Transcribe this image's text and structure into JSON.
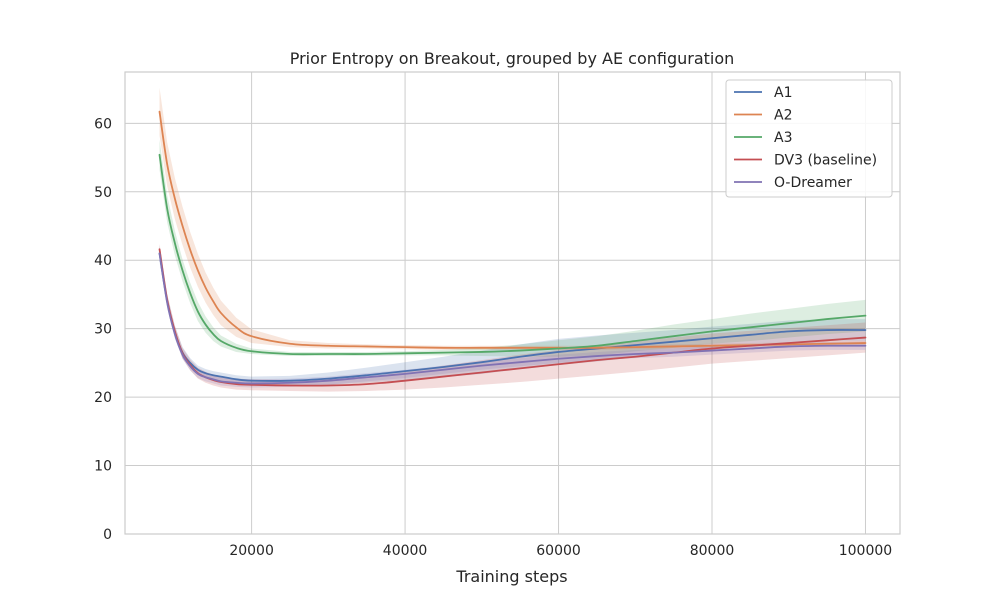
{
  "chart_data": {
    "type": "line",
    "title": "Prior Entropy on Breakout, grouped by AE configuration",
    "xlabel": "Training steps",
    "ylabel": "",
    "xlim": [
      3500,
      104500
    ],
    "ylim": [
      0,
      67.5
    ],
    "xticks": [
      20000,
      40000,
      60000,
      80000,
      100000
    ],
    "yticks": [
      0,
      10,
      20,
      30,
      40,
      50,
      60
    ],
    "grid": true,
    "legend_position": "top-right",
    "x": [
      8000,
      9000,
      10000,
      11000,
      12000,
      13000,
      14000,
      15000,
      16000,
      18000,
      20000,
      25000,
      30000,
      35000,
      40000,
      45000,
      50000,
      55000,
      60000,
      65000,
      70000,
      75000,
      80000,
      85000,
      90000,
      95000,
      100000
    ],
    "series": [
      {
        "name": "A1",
        "color": "#4c72b0",
        "values": [
          41,
          34,
          29.5,
          26.5,
          25,
          24,
          23.5,
          23.2,
          23,
          22.6,
          22.4,
          22.4,
          22.7,
          23.2,
          23.8,
          24.4,
          25.1,
          25.9,
          26.6,
          27.1,
          27.6,
          28.1,
          28.6,
          29.1,
          29.6,
          29.8,
          29.8
        ],
        "band": [
          1.2,
          1.0,
          0.9,
          0.8,
          0.7,
          0.6,
          0.6,
          0.6,
          0.6,
          0.6,
          0.6,
          0.7,
          0.9,
          1.1,
          1.3,
          1.5,
          1.7,
          1.8,
          1.9,
          1.9,
          1.8,
          1.7,
          1.7,
          1.6,
          1.6,
          1.6,
          1.6
        ]
      },
      {
        "name": "A2",
        "color": "#dd8452",
        "values": [
          61.7,
          54,
          49,
          45,
          41.5,
          38.5,
          36,
          34,
          32.3,
          30.2,
          28.9,
          27.8,
          27.5,
          27.4,
          27.3,
          27.2,
          27.2,
          27.2,
          27.2,
          27.2,
          27.3,
          27.4,
          27.5,
          27.6,
          27.7,
          27.8,
          27.9
        ],
        "band": [
          3.5,
          3.2,
          3.0,
          2.8,
          2.6,
          2.4,
          2.2,
          2.0,
          1.8,
          1.4,
          1.0,
          0.5,
          0.4,
          0.3,
          0.3,
          0.3,
          0.3,
          0.3,
          0.3,
          0.3,
          0.3,
          0.3,
          0.3,
          0.3,
          0.3,
          0.3,
          0.3
        ]
      },
      {
        "name": "A3",
        "color": "#55a868",
        "values": [
          55.4,
          47.5,
          42.5,
          38.5,
          35.2,
          32.5,
          30.6,
          29.2,
          28.2,
          27.2,
          26.7,
          26.3,
          26.3,
          26.3,
          26.4,
          26.5,
          26.6,
          26.8,
          27.1,
          27.5,
          28.2,
          28.9,
          29.6,
          30.2,
          30.8,
          31.4,
          31.9
        ],
        "band": [
          2.2,
          2.0,
          1.8,
          1.6,
          1.5,
          1.4,
          1.2,
          1.0,
          0.8,
          0.6,
          0.4,
          0.3,
          0.3,
          0.3,
          0.3,
          0.4,
          0.6,
          0.9,
          1.2,
          1.4,
          1.5,
          1.7,
          1.8,
          2.0,
          2.1,
          2.2,
          2.3
        ]
      },
      {
        "name": "DV3 (baseline)",
        "color": "#c44e52",
        "values": [
          41.6,
          34.2,
          29.6,
          26.4,
          24.7,
          23.5,
          22.9,
          22.5,
          22.2,
          21.9,
          21.8,
          21.7,
          21.7,
          21.9,
          22.4,
          23,
          23.6,
          24.2,
          24.8,
          25.4,
          25.9,
          26.5,
          27.1,
          27.5,
          27.9,
          28.3,
          28.7
        ],
        "band": [
          0.8,
          0.8,
          0.8,
          0.8,
          0.8,
          0.8,
          0.8,
          0.8,
          0.8,
          0.8,
          0.8,
          0.8,
          0.9,
          1.0,
          1.3,
          1.6,
          1.8,
          2.0,
          2.1,
          2.2,
          2.2,
          2.2,
          2.2,
          2.2,
          2.2,
          2.2,
          2.2
        ]
      },
      {
        "name": "O-Dreamer",
        "color": "#8172b3",
        "values": [
          41,
          33.8,
          29.2,
          26.2,
          24.5,
          23.4,
          22.9,
          22.6,
          22.3,
          22.1,
          22,
          22.1,
          22.4,
          22.9,
          23.4,
          24,
          24.6,
          25.1,
          25.6,
          26,
          26.3,
          26.5,
          26.8,
          27.1,
          27.4,
          27.5,
          27.5
        ],
        "band": [
          0.8,
          0.7,
          0.6,
          0.6,
          0.6,
          0.6,
          0.6,
          0.6,
          0.6,
          0.6,
          0.6,
          0.6,
          0.6,
          0.6,
          0.6,
          0.6,
          0.6,
          0.6,
          0.6,
          0.6,
          0.6,
          0.6,
          0.6,
          0.6,
          0.6,
          0.6,
          0.6
        ]
      }
    ]
  }
}
